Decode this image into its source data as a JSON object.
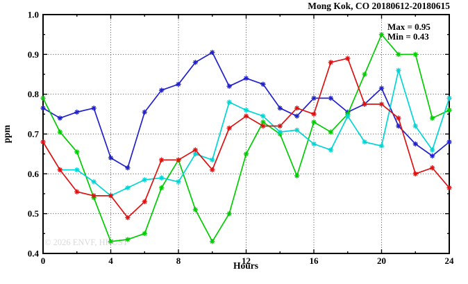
{
  "title": "Mong Kok, CO 20180612-20180615",
  "annotation": {
    "max": "Max = 0.95",
    "min": "Min = 0.43"
  },
  "watermark": "© 2026 ENVF, HKUST",
  "chart_data": {
    "type": "line",
    "title": "Mong Kok, CO 20180612-20180615",
    "xlabel": "Hours",
    "ylabel": "ppm",
    "xlim": [
      0,
      24
    ],
    "ylim": [
      0.4,
      1.0
    ],
    "xticks": [
      0,
      4,
      8,
      12,
      16,
      20,
      24
    ],
    "xticks_minor": [
      2,
      6,
      10,
      14,
      18,
      22
    ],
    "yticks": [
      0.4,
      0.5,
      0.6,
      0.7,
      0.8,
      0.9,
      1.0
    ],
    "yticks_minor": [
      0.45,
      0.55,
      0.65,
      0.75,
      0.85,
      0.95
    ],
    "grid": true,
    "legend": "none",
    "marker": "asterisk",
    "x": [
      0,
      1,
      2,
      3,
      4,
      5,
      6,
      7,
      8,
      9,
      10,
      11,
      12,
      13,
      14,
      15,
      16,
      17,
      18,
      19,
      20,
      21,
      22,
      23,
      24
    ],
    "series": [
      {
        "name": "blue",
        "color": "#2020cc",
        "values": [
          0.765,
          0.74,
          0.755,
          0.765,
          0.64,
          0.615,
          0.755,
          0.81,
          0.825,
          0.88,
          0.905,
          0.82,
          0.84,
          0.825,
          0.765,
          0.745,
          0.79,
          0.79,
          0.755,
          0.775,
          0.815,
          0.72,
          0.675,
          0.645,
          0.68
        ]
      },
      {
        "name": "green",
        "color": "#00cc00",
        "values": [
          0.79,
          0.705,
          0.655,
          0.54,
          0.43,
          0.435,
          0.45,
          0.565,
          0.635,
          0.51,
          0.43,
          0.5,
          0.65,
          0.73,
          0.7,
          0.595,
          0.73,
          0.705,
          0.75,
          0.85,
          0.95,
          0.9,
          0.9,
          0.74,
          0.76
        ]
      },
      {
        "name": "cyan",
        "color": "#00d5d5",
        "values": [
          null,
          0.61,
          0.61,
          0.58,
          0.545,
          0.565,
          0.585,
          0.59,
          0.58,
          0.65,
          0.635,
          0.78,
          0.76,
          0.745,
          0.705,
          0.71,
          0.675,
          0.66,
          0.745,
          0.68,
          0.67,
          0.86,
          0.72,
          0.66,
          0.79
        ]
      },
      {
        "name": "red",
        "color": "#dd1111",
        "values": [
          0.68,
          0.61,
          0.555,
          0.545,
          0.545,
          0.49,
          0.53,
          0.635,
          0.635,
          0.66,
          0.61,
          0.715,
          0.745,
          0.72,
          0.72,
          0.765,
          0.75,
          0.88,
          0.89,
          0.775,
          0.775,
          0.74,
          0.6,
          0.615,
          0.565
        ]
      }
    ]
  }
}
